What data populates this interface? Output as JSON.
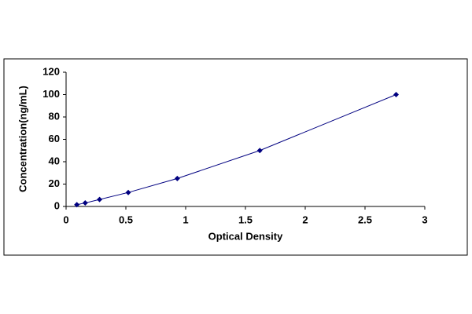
{
  "chart_data": {
    "type": "scatter",
    "xlabel": "Optical Density",
    "ylabel": "Concentration(ng/mL)",
    "x": [
      0.09,
      0.16,
      0.28,
      0.52,
      0.93,
      1.62,
      2.76
    ],
    "series": [
      {
        "color": "#000080",
        "values": [
          1.56,
          3.12,
          6.25,
          12.5,
          25,
          50,
          100
        ]
      }
    ],
    "xlim": [
      0,
      3
    ],
    "xticks": [
      0,
      0.5,
      1,
      1.5,
      2,
      2.5,
      3
    ],
    "ylim": [
      0,
      120
    ],
    "yticks": [
      0,
      20,
      40,
      60,
      80,
      100,
      120
    ],
    "connect": true,
    "grid": false
  }
}
